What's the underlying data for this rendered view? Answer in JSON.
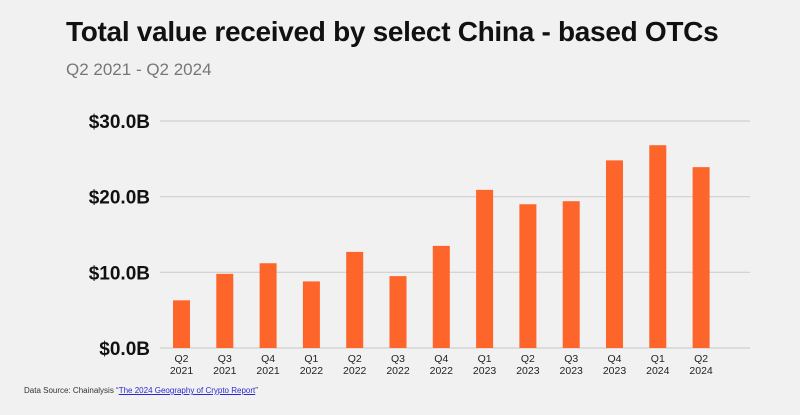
{
  "chart_data": {
    "type": "bar",
    "title": "Total value received by select China - based OTCs",
    "subtitle": "Q2 2021 - Q2 2024",
    "categories": [
      [
        "Q2",
        "2021"
      ],
      [
        "Q3",
        "2021"
      ],
      [
        "Q4",
        "2021"
      ],
      [
        "Q1",
        "2022"
      ],
      [
        "Q2",
        "2022"
      ],
      [
        "Q3",
        "2022"
      ],
      [
        "Q4",
        "2022"
      ],
      [
        "Q1",
        "2023"
      ],
      [
        "Q2",
        "2023"
      ],
      [
        "Q3",
        "2023"
      ],
      [
        "Q4",
        "2023"
      ],
      [
        "Q1",
        "2024"
      ],
      [
        "Q2",
        "2024"
      ]
    ],
    "values": [
      6.3,
      9.8,
      11.2,
      8.8,
      12.7,
      9.5,
      13.5,
      20.9,
      19.0,
      19.4,
      24.8,
      26.8,
      23.9
    ],
    "unit": "billion USD",
    "ylim": [
      0,
      30
    ],
    "yticks": [
      0,
      10,
      20,
      30
    ],
    "ytick_labels": [
      "$0.0B",
      "$10.0B",
      "$20.0B",
      "$30.0B"
    ],
    "grid": true,
    "bar_color": "#fd652b"
  },
  "source": {
    "prefix": "Data Source: Chainalysis “",
    "link": "The 2024 Geography of Crypto Report",
    "suffix": "”"
  }
}
